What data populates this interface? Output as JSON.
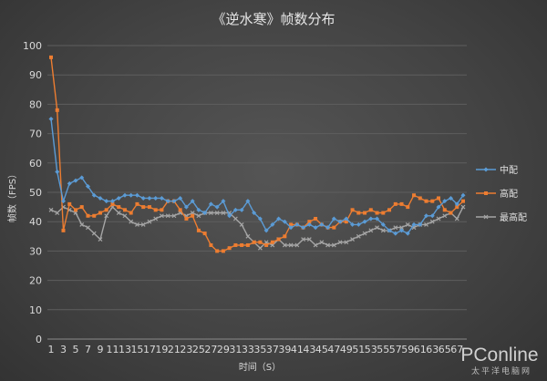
{
  "chart_data": {
    "type": "line",
    "title": "《逆水寒》帧数分布",
    "xlabel": "时间（S）",
    "ylabel": "帧数（FPS）",
    "ylim": [
      0,
      100
    ],
    "yticks": [
      0,
      10,
      20,
      30,
      40,
      50,
      60,
      70,
      80,
      90,
      100
    ],
    "x": [
      1,
      2,
      3,
      4,
      5,
      6,
      7,
      8,
      9,
      10,
      11,
      12,
      13,
      14,
      15,
      16,
      17,
      18,
      19,
      20,
      21,
      22,
      23,
      24,
      25,
      26,
      27,
      28,
      29,
      30,
      31,
      32,
      33,
      34,
      35,
      36,
      37,
      38,
      39,
      40,
      41,
      42,
      43,
      44,
      45,
      46,
      47,
      48,
      49,
      50,
      51,
      52,
      53,
      54,
      55,
      56,
      57,
      58,
      59,
      60,
      61,
      62,
      63,
      64,
      65,
      66,
      67,
      68
    ],
    "xtick_labels": [
      1,
      3,
      5,
      7,
      9,
      11,
      13,
      15,
      17,
      19,
      21,
      23,
      25,
      27,
      29,
      31,
      33,
      35,
      37,
      39,
      41,
      43,
      45,
      47,
      49,
      51,
      53,
      55,
      57,
      59,
      61,
      63,
      65,
      67
    ],
    "grid": true,
    "legend_position": "right",
    "series": [
      {
        "name": "中配",
        "color": "#5b9bd5",
        "marker": "diamond",
        "values": [
          75,
          57,
          47,
          53,
          54,
          55,
          52,
          49,
          48,
          47,
          47,
          48,
          49,
          49,
          49,
          48,
          48,
          48,
          48,
          47,
          47,
          48,
          45,
          47,
          44,
          43,
          46,
          45,
          47,
          42,
          44,
          44,
          47,
          43,
          41,
          37,
          39,
          41,
          40,
          38,
          39,
          38,
          39,
          38,
          39,
          38,
          41,
          40,
          41,
          39,
          39,
          40,
          41,
          41,
          39,
          37,
          36,
          37,
          36,
          39,
          39,
          42,
          42,
          45,
          47,
          48,
          46,
          49
        ]
      },
      {
        "name": "高配",
        "color": "#ed7d31",
        "marker": "square",
        "values": [
          96,
          78,
          37,
          46,
          44,
          45,
          42,
          42,
          43,
          44,
          46,
          45,
          44,
          43,
          46,
          45,
          45,
          44,
          44,
          47,
          47,
          44,
          41,
          42,
          37,
          36,
          32,
          30,
          30,
          31,
          32,
          32,
          32,
          33,
          33,
          32,
          33,
          34,
          35,
          39,
          39,
          38,
          40,
          41,
          39,
          38,
          38,
          40,
          40,
          44,
          43,
          43,
          44,
          43,
          43,
          44,
          46,
          46,
          45,
          49,
          48,
          47,
          47,
          48,
          44,
          43,
          45,
          47
        ]
      },
      {
        "name": "最高配",
        "color": "#a5a5a5",
        "marker": "x",
        "values": [
          44,
          43,
          45,
          44,
          43,
          39,
          38,
          36,
          34,
          42,
          45,
          43,
          42,
          40,
          39,
          39,
          40,
          41,
          42,
          42,
          42,
          43,
          42,
          43,
          42,
          43,
          43,
          43,
          43,
          43,
          41,
          39,
          35,
          33,
          31,
          33,
          32,
          34,
          32,
          32,
          32,
          34,
          34,
          32,
          33,
          32,
          32,
          33,
          33,
          34,
          35,
          36,
          37,
          38,
          37,
          37,
          38,
          38,
          39,
          38,
          39,
          39,
          40,
          41,
          42,
          43,
          41,
          45
        ]
      }
    ]
  },
  "watermark": {
    "logo_text": "PConline",
    "tagline": "太平洋电脑网"
  }
}
